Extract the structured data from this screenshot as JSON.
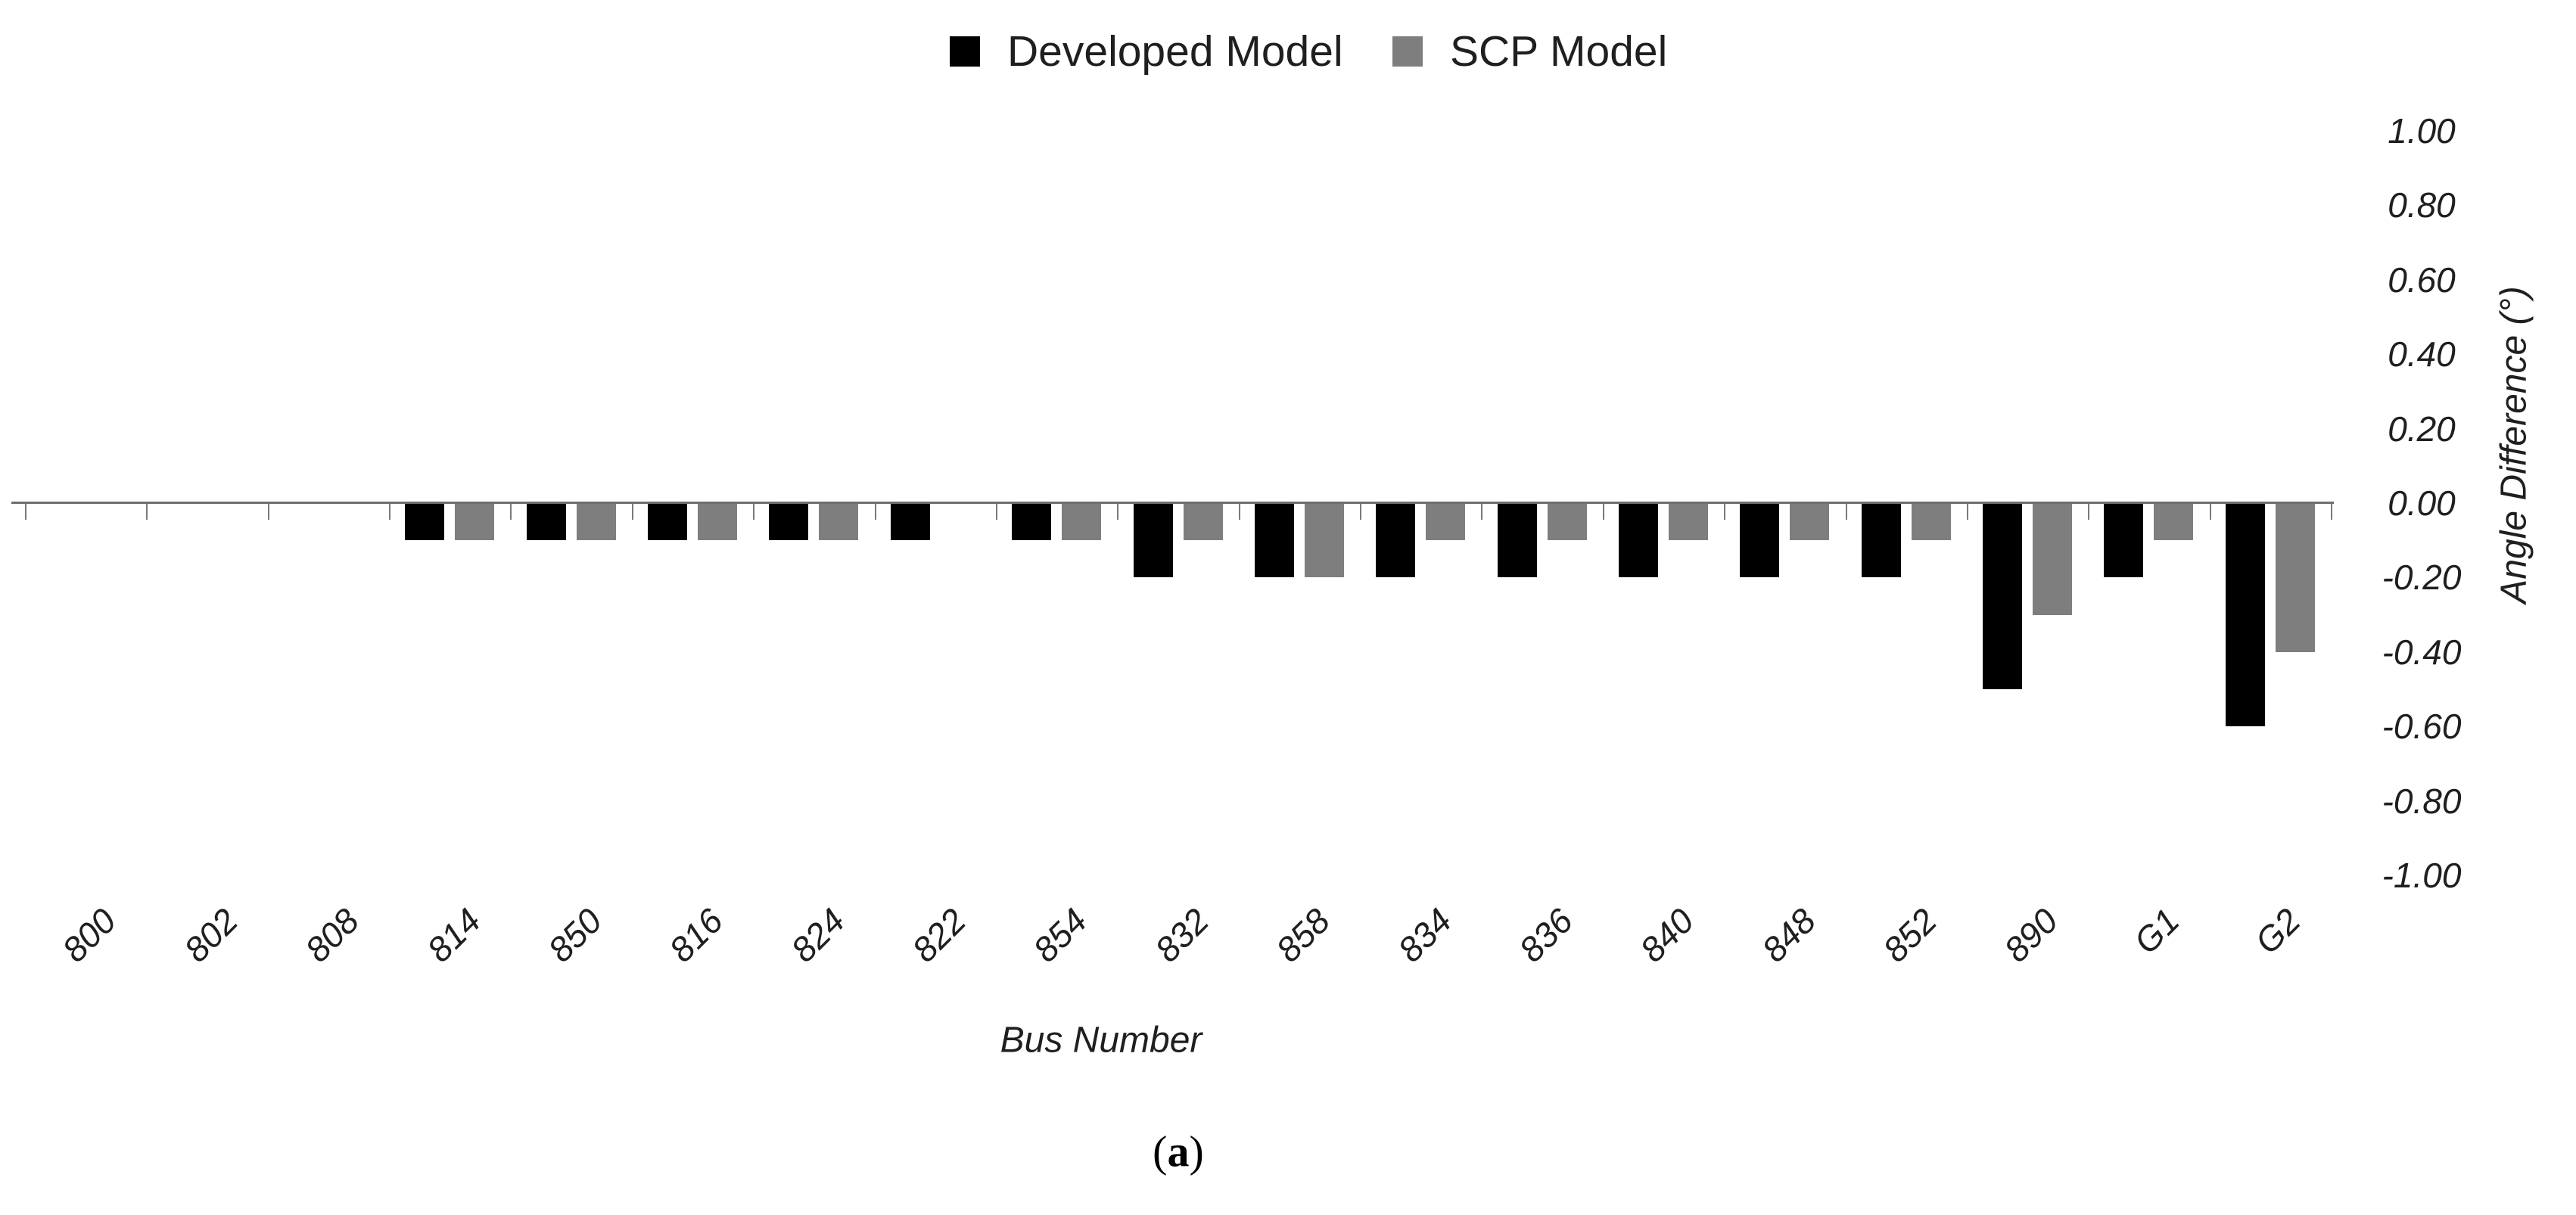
{
  "figure": {
    "caption_open": "(",
    "caption_letter": "a",
    "caption_close": ")"
  },
  "chart_data": {
    "type": "bar",
    "title": "",
    "categories": [
      "800",
      "802",
      "808",
      "814",
      "850",
      "816",
      "824",
      "822",
      "854",
      "832",
      "858",
      "834",
      "836",
      "840",
      "848",
      "852",
      "890",
      "G1",
      "G2"
    ],
    "series": [
      {
        "name": "Developed Model",
        "color": "#000000",
        "values": [
          0,
          0,
          0,
          -0.1,
          -0.1,
          -0.1,
          -0.1,
          -0.1,
          -0.1,
          -0.2,
          -0.2,
          -0.2,
          -0.2,
          -0.2,
          -0.2,
          -0.2,
          -0.5,
          -0.2,
          -0.6
        ]
      },
      {
        "name": "SCP Model",
        "color": "#7e7e7e",
        "values": [
          0,
          0,
          0,
          -0.1,
          -0.1,
          -0.1,
          -0.1,
          0,
          -0.1,
          -0.1,
          -0.2,
          -0.1,
          -0.1,
          -0.1,
          -0.1,
          -0.1,
          -0.3,
          -0.1,
          -0.4
        ]
      }
    ],
    "xlabel": "Bus Number",
    "ylabel": "Angle Difference (°)",
    "ylim": [
      -1.0,
      1.0
    ],
    "ytick_step": 0.2,
    "yticks": [
      "1.00",
      "0.80",
      "0.60",
      "0.40",
      "0.20",
      "0.00",
      "-0.20",
      "-0.40",
      "-0.60",
      "-0.80",
      "-1.00"
    ],
    "ytick_values": [
      1.0,
      0.8,
      0.6,
      0.4,
      0.2,
      0.0,
      -0.2,
      -0.4,
      -0.6,
      -0.8,
      -1.0
    ],
    "grid": false,
    "legend_position": "top-center",
    "axis_color": "#6e6e6e",
    "tick_color": "#7a7a7a",
    "text_color": "#1f1f1f",
    "background_color": "#ffffff"
  }
}
